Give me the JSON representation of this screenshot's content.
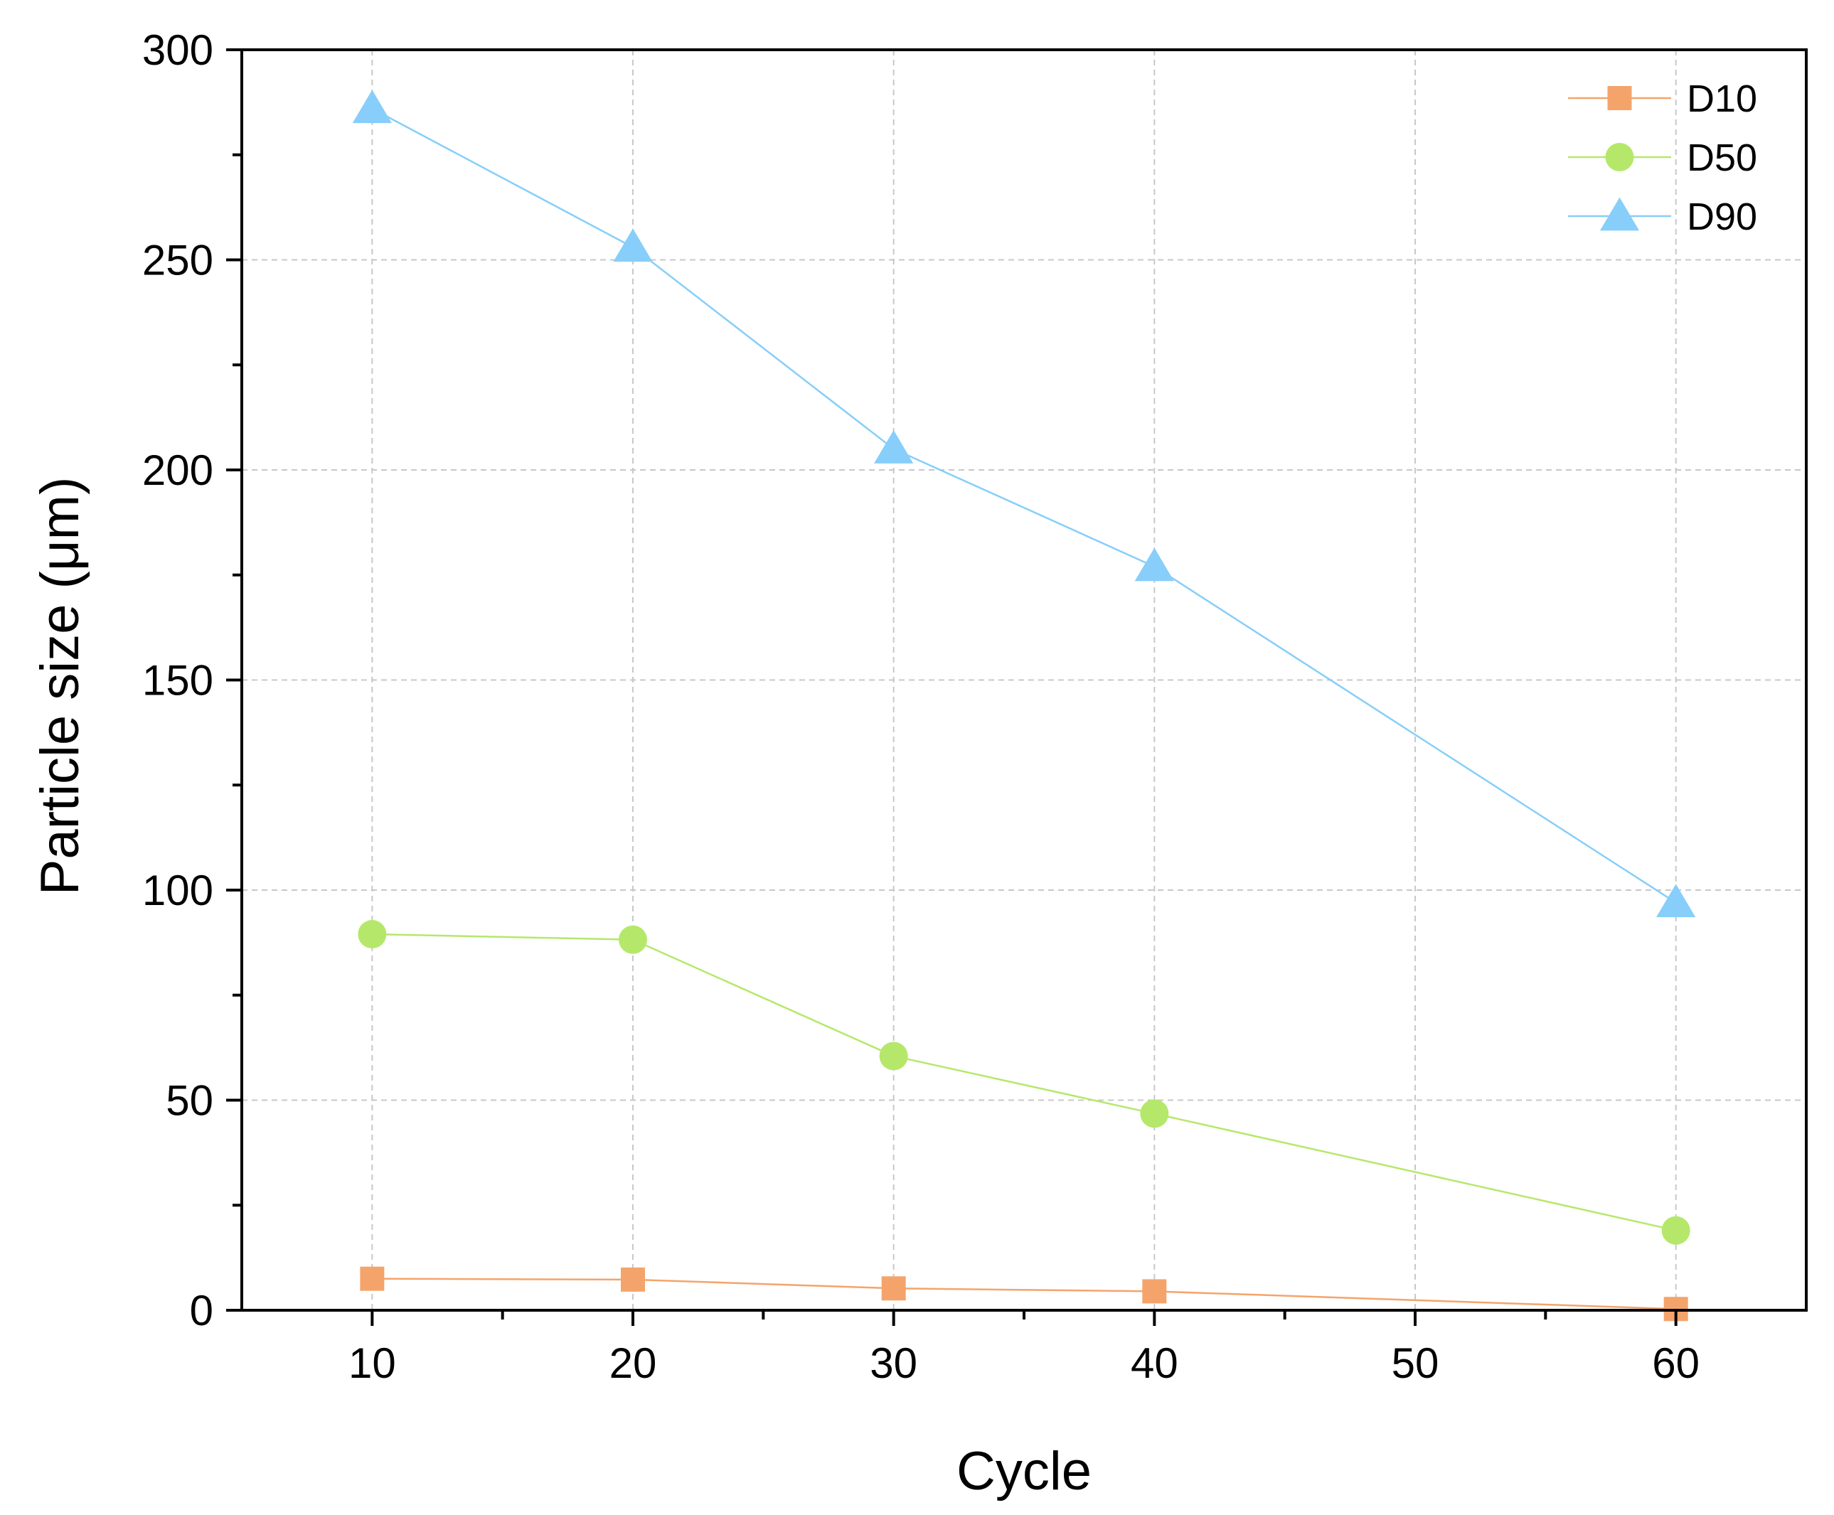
{
  "chart_data": {
    "type": "line",
    "title": "",
    "xlabel": "Cycle",
    "ylabel": "Particle size (μm)",
    "xlim": [
      5,
      65
    ],
    "ylim": [
      0,
      300
    ],
    "x_ticks": [
      10,
      20,
      30,
      40,
      50,
      60
    ],
    "y_ticks": [
      0,
      50,
      100,
      150,
      200,
      250,
      300
    ],
    "x_minor_ticks": [
      15,
      25,
      35,
      45,
      55
    ],
    "y_minor_ticks": [
      25,
      75,
      125,
      175,
      225,
      275
    ],
    "grid": true,
    "legend_position": "top-right",
    "x": [
      10,
      20,
      30,
      40,
      60
    ],
    "series": [
      {
        "name": "D10",
        "marker": "square",
        "color": "#F4A46B",
        "values": [
          7.5,
          7.3,
          5.2,
          4.5,
          0.3
        ]
      },
      {
        "name": "D50",
        "marker": "circle",
        "color": "#B5E86A",
        "values": [
          89.5,
          88.2,
          60.5,
          46.8,
          19.0
        ]
      },
      {
        "name": "D90",
        "marker": "triangle",
        "color": "#87CEFA",
        "values": [
          286,
          253,
          205,
          177,
          97
        ]
      }
    ]
  }
}
